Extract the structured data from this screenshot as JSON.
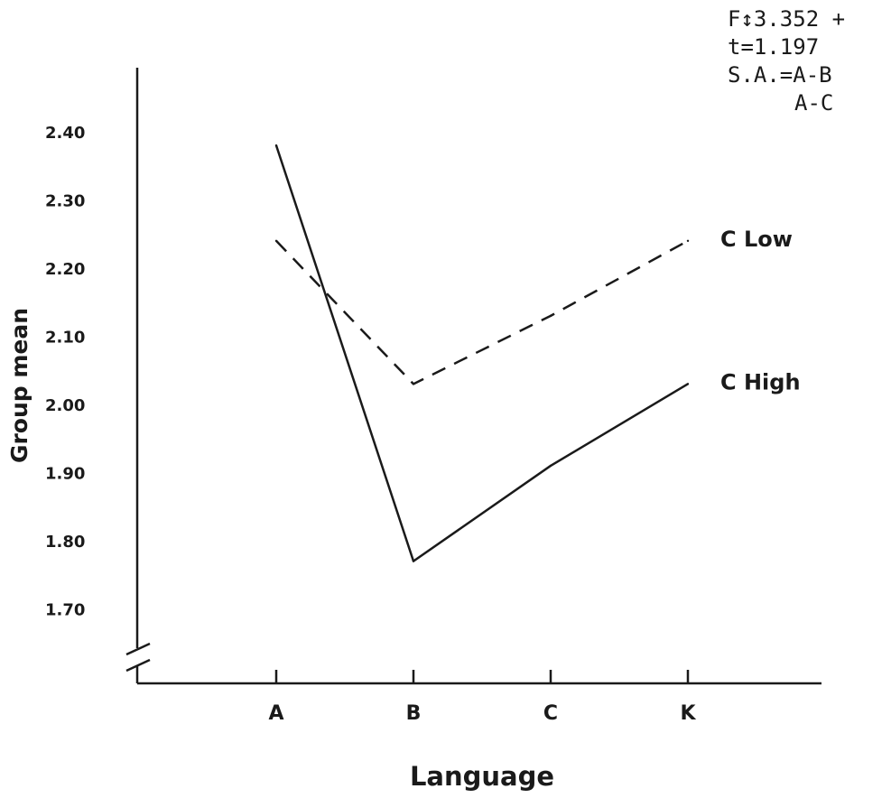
{
  "chart_data": {
    "type": "line",
    "title": "",
    "xlabel": "Language",
    "ylabel": "Group mean",
    "categories": [
      "A",
      "B",
      "C",
      "K"
    ],
    "yticks": [
      "2.40",
      "2.30",
      "2.20",
      "2.10",
      "2.00",
      "1.90",
      "1.80",
      "1.70"
    ],
    "ytick_values": [
      2.4,
      2.3,
      2.2,
      2.1,
      2.0,
      1.9,
      1.8,
      1.7
    ],
    "ylim": [
      1.6,
      2.45
    ],
    "axis_break": true,
    "grid": false,
    "series": [
      {
        "name": "C Low",
        "style": "dashed",
        "values": [
          2.24,
          2.03,
          2.13,
          2.24
        ]
      },
      {
        "name": "C High",
        "style": "solid",
        "values": [
          2.38,
          1.77,
          1.91,
          2.03
        ]
      }
    ],
    "annotations": [
      "F↕3.352 +",
      "t=1.197",
      "S.A.=A-B",
      "A-C"
    ]
  },
  "colors": {
    "ink": "#1a1a1a",
    "paper": "#ffffff"
  }
}
